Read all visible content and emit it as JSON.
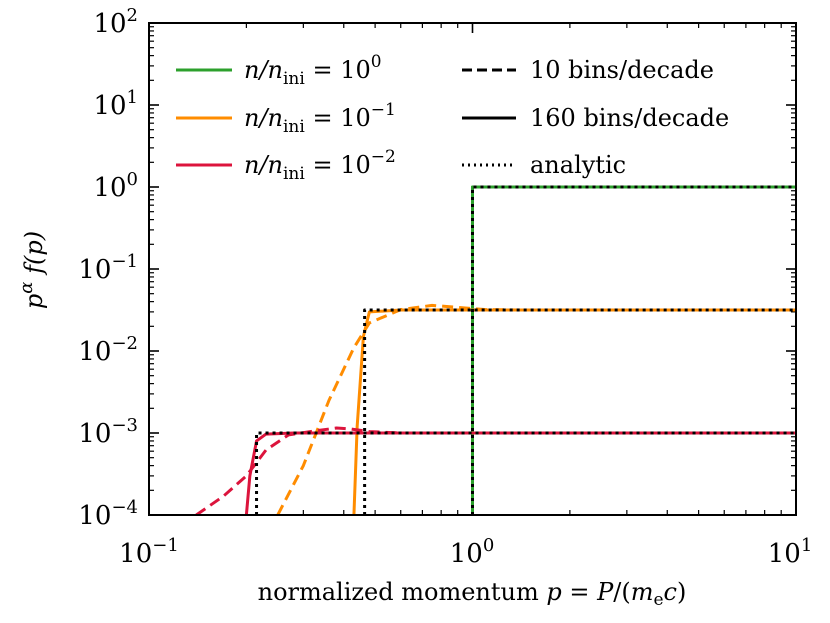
{
  "chart_data": {
    "type": "line",
    "xscale": "log",
    "yscale": "log",
    "xlim": [
      0.1,
      10
    ],
    "ylim": [
      0.0001,
      100
    ],
    "xlabel": "normalized momentum p = P/(m_e c)",
    "xlabel_parts": {
      "pre": "normalized momentum ",
      "p": "p",
      "eq": " = ",
      "P": "P",
      "slash": "/(",
      "m": "m",
      "e": "e",
      "c": "c",
      "close": ")"
    },
    "ylabel_parts": {
      "p": "p",
      "alpha": "α",
      "f": "f",
      "arg": "(p)"
    },
    "x_ticks": [
      {
        "base": "10",
        "exp": "−1",
        "value": 0.1
      },
      {
        "base": "10",
        "exp": "0",
        "value": 1
      },
      {
        "base": "10",
        "exp": "1",
        "value": 10
      }
    ],
    "y_ticks": [
      {
        "base": "10",
        "exp": "−4",
        "value": 0.0001
      },
      {
        "base": "10",
        "exp": "−3",
        "value": 0.001
      },
      {
        "base": "10",
        "exp": "−2",
        "value": 0.01
      },
      {
        "base": "10",
        "exp": "−1",
        "value": 0.1
      },
      {
        "base": "10",
        "exp": "0",
        "value": 1
      },
      {
        "base": "10",
        "exp": "1",
        "value": 10
      },
      {
        "base": "10",
        "exp": "2",
        "value": 100
      }
    ],
    "legend_left": [
      {
        "name": "n/n_ini = 10^0",
        "prefix": "n/n",
        "sub": "ini",
        "eq": " = 10",
        "exp": "0",
        "color": "#2ca02c"
      },
      {
        "name": "n/n_ini = 10^-1",
        "prefix": "n/n",
        "sub": "ini",
        "eq": " = 10",
        "exp": "−1",
        "color": "#ff8c00"
      },
      {
        "name": "n/n_ini = 10^-2",
        "prefix": "n/n",
        "sub": "ini",
        "eq": " = 10",
        "exp": "−2",
        "color": "#dc143c"
      }
    ],
    "legend_right": [
      {
        "label": "10 bins/decade",
        "style": "dashed"
      },
      {
        "label": "160 bins/decade",
        "style": "solid"
      },
      {
        "label": "analytic",
        "style": "dotted"
      }
    ],
    "series": [
      {
        "name": "n/n_ini = 10^0 (160 bins/decade)",
        "color": "#2ca02c",
        "style": "solid",
        "x": [
          1.0,
          1.0,
          10
        ],
        "y": [
          0.0001,
          1.0,
          1.0
        ]
      },
      {
        "name": "n/n_ini = 10^0 (10 bins/decade)",
        "color": "#2ca02c",
        "style": "dashed",
        "x": [
          1.0,
          1.0,
          10
        ],
        "y": [
          0.0001,
          1.0,
          1.0
        ]
      },
      {
        "name": "n/n_ini = 10^-1 (160 bins/decade)",
        "color": "#ff8c00",
        "style": "solid",
        "x": [
          0.43,
          0.44,
          0.46,
          0.48,
          0.6,
          10
        ],
        "y": [
          0.0001,
          0.0012,
          0.015,
          0.03,
          0.0316,
          0.0316
        ]
      },
      {
        "name": "n/n_ini = 10^-1 (10 bins/decade)",
        "color": "#ff8c00",
        "style": "dashed",
        "x": [
          0.25,
          0.3,
          0.36,
          0.43,
          0.48,
          0.6,
          0.75,
          0.9,
          1.1,
          1.5,
          10
        ],
        "y": [
          0.0001,
          0.0004,
          0.0025,
          0.011,
          0.022,
          0.032,
          0.036,
          0.034,
          0.032,
          0.0316,
          0.0316
        ]
      },
      {
        "name": "n/n_ini = 10^-2 (160 bins/decade)",
        "color": "#dc143c",
        "style": "solid",
        "x": [
          0.2,
          0.205,
          0.215,
          0.23,
          0.28,
          0.4,
          10
        ],
        "y": [
          0.0001,
          0.0003,
          0.0008,
          0.00097,
          0.001,
          0.001,
          0.001
        ]
      },
      {
        "name": "n/n_ini = 10^-2 (10 bins/decade)",
        "color": "#dc143c",
        "style": "dashed",
        "x": [
          0.14,
          0.17,
          0.2,
          0.23,
          0.27,
          0.32,
          0.38,
          0.42,
          0.48,
          0.6,
          0.8,
          10
        ],
        "y": [
          0.0001,
          0.00017,
          0.0003,
          0.00062,
          0.00095,
          0.00105,
          0.00115,
          0.00112,
          0.00104,
          0.001,
          0.001,
          0.001
        ]
      },
      {
        "name": "analytic 10^0",
        "color": "#000000",
        "style": "dotted",
        "x": [
          1.0,
          1.0,
          10
        ],
        "y": [
          0.0001,
          1.0,
          1.0
        ]
      },
      {
        "name": "analytic 10^-1",
        "color": "#000000",
        "style": "dotted",
        "x": [
          0.464,
          0.464,
          10
        ],
        "y": [
          0.0001,
          0.0316,
          0.0316
        ]
      },
      {
        "name": "analytic 10^-2",
        "color": "#000000",
        "style": "dotted",
        "x": [
          0.215,
          0.215,
          10
        ],
        "y": [
          0.0001,
          0.001,
          0.001
        ]
      }
    ]
  }
}
